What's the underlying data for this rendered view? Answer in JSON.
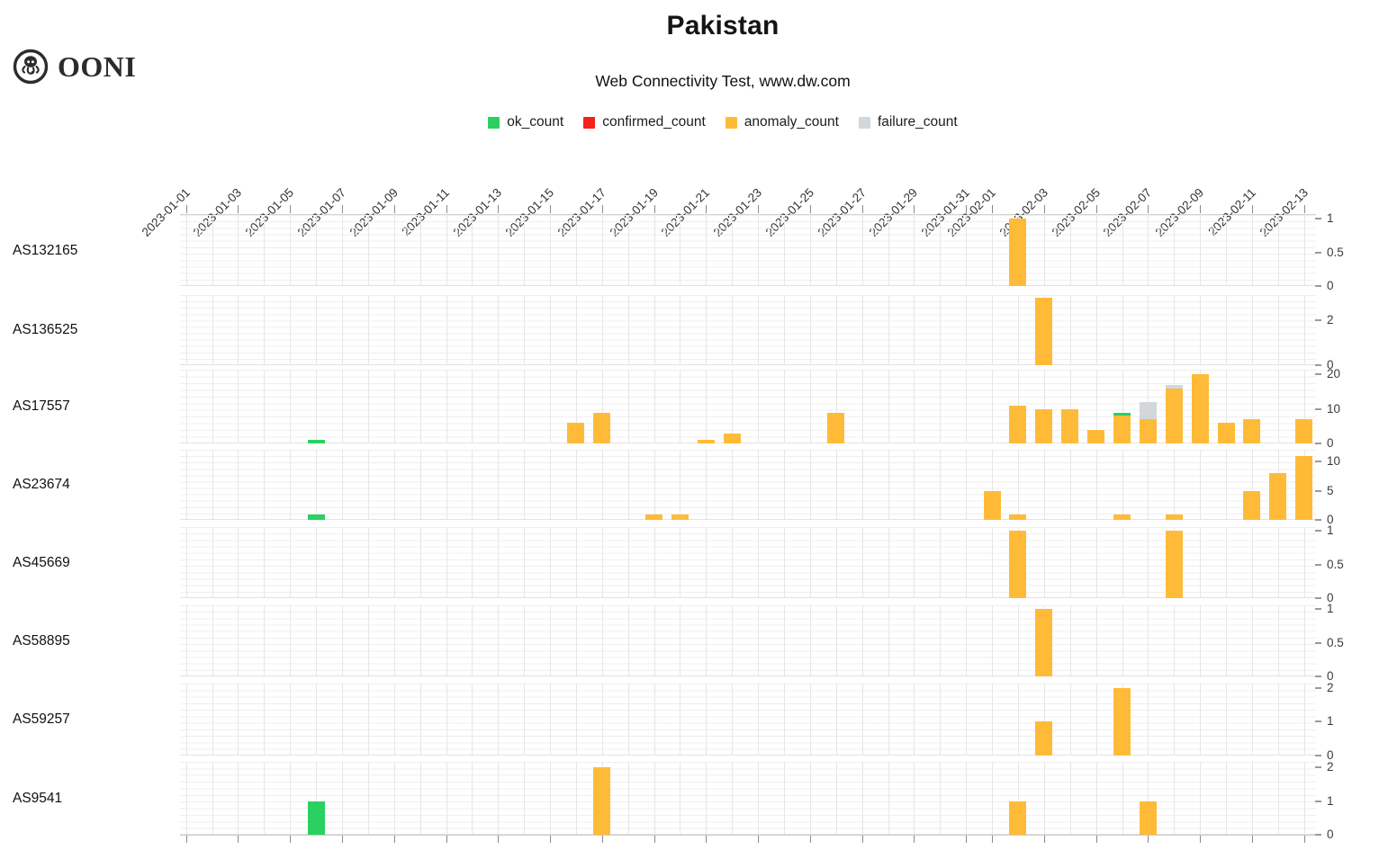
{
  "header": {
    "brand": "OONI",
    "title": "Pakistan",
    "subtitle": "Web Connectivity Test, www.dw.com"
  },
  "legend": [
    {
      "label": "ok_count",
      "color": "#2bd062"
    },
    {
      "label": "confirmed_count",
      "color": "#f8201a"
    },
    {
      "label": "anomaly_count",
      "color": "#ffbb38"
    },
    {
      "label": "failure_count",
      "color": "#d2d7dc"
    }
  ],
  "chart_data": {
    "type": "bar",
    "stacked": true,
    "grid": true,
    "legend_position": "top",
    "title": "Pakistan",
    "subtitle": "Web Connectivity Test, www.dw.com",
    "x_range": [
      "2023-01-01",
      "2023-02-13"
    ],
    "x_tick_labels": [
      "2023-01-01",
      "2023-01-03",
      "2023-01-05",
      "2023-01-07",
      "2023-01-09",
      "2023-01-11",
      "2023-01-13",
      "2023-01-15",
      "2023-01-17",
      "2023-01-19",
      "2023-01-21",
      "2023-01-23",
      "2023-01-25",
      "2023-01-27",
      "2023-01-29",
      "2023-01-31",
      "2023-02-01",
      "2023-02-03",
      "2023-02-05",
      "2023-02-07",
      "2023-02-09",
      "2023-02-11",
      "2023-02-13"
    ],
    "series_colors": {
      "ok": "#2bd062",
      "confirmed": "#f8201a",
      "anomaly": "#ffbb38",
      "failure": "#d2d7dc"
    },
    "stack_order": [
      "anomaly",
      "confirmed",
      "ok",
      "failure"
    ],
    "panels": [
      {
        "as": "AS132165",
        "ylim": [
          0,
          1.06
        ],
        "yticks": [
          0,
          0.5,
          1
        ],
        "bars": [
          {
            "date": "2023-02-02",
            "anomaly": 1
          }
        ]
      },
      {
        "as": "AS136525",
        "ylim": [
          0,
          3.1
        ],
        "yticks": [
          0,
          2
        ],
        "bars": [
          {
            "date": "2023-02-03",
            "anomaly": 3
          }
        ]
      },
      {
        "as": "AS17557",
        "ylim": [
          0,
          21.4
        ],
        "yticks": [
          0,
          10,
          20
        ],
        "bars": [
          {
            "date": "2023-01-06",
            "ok": 1
          },
          {
            "date": "2023-01-16",
            "anomaly": 6
          },
          {
            "date": "2023-01-17",
            "anomaly": 9
          },
          {
            "date": "2023-01-21",
            "anomaly": 1
          },
          {
            "date": "2023-01-22",
            "anomaly": 3
          },
          {
            "date": "2023-01-26",
            "anomaly": 9
          },
          {
            "date": "2023-02-02",
            "anomaly": 11
          },
          {
            "date": "2023-02-03",
            "anomaly": 10
          },
          {
            "date": "2023-02-04",
            "anomaly": 10
          },
          {
            "date": "2023-02-05",
            "anomaly": 4
          },
          {
            "date": "2023-02-06",
            "anomaly": 8,
            "ok": 1
          },
          {
            "date": "2023-02-07",
            "anomaly": 7,
            "failure": 5
          },
          {
            "date": "2023-02-08",
            "anomaly": 16,
            "failure": 1
          },
          {
            "date": "2023-02-09",
            "anomaly": 20
          },
          {
            "date": "2023-02-10",
            "anomaly": 6
          },
          {
            "date": "2023-02-11",
            "anomaly": 7
          },
          {
            "date": "2023-02-13",
            "anomaly": 7
          }
        ]
      },
      {
        "as": "AS23674",
        "ylim": [
          0,
          12
        ],
        "yticks": [
          0,
          5,
          10
        ],
        "bars": [
          {
            "date": "2023-01-06",
            "ok": 1
          },
          {
            "date": "2023-01-19",
            "anomaly": 1
          },
          {
            "date": "2023-01-20",
            "anomaly": 1
          },
          {
            "date": "2023-02-01",
            "anomaly": 5
          },
          {
            "date": "2023-02-02",
            "anomaly": 1
          },
          {
            "date": "2023-02-06",
            "anomaly": 1
          },
          {
            "date": "2023-02-08",
            "anomaly": 1
          },
          {
            "date": "2023-02-11",
            "anomaly": 5
          },
          {
            "date": "2023-02-12",
            "anomaly": 8
          },
          {
            "date": "2023-02-13",
            "anomaly": 11
          }
        ]
      },
      {
        "as": "AS45669",
        "ylim": [
          0,
          1.06
        ],
        "yticks": [
          0,
          0.5,
          1
        ],
        "bars": [
          {
            "date": "2023-02-02",
            "anomaly": 1
          },
          {
            "date": "2023-02-08",
            "anomaly": 1
          }
        ]
      },
      {
        "as": "AS58895",
        "ylim": [
          0,
          1.06
        ],
        "yticks": [
          0,
          0.5,
          1
        ],
        "bars": [
          {
            "date": "2023-02-03",
            "anomaly": 1
          }
        ]
      },
      {
        "as": "AS59257",
        "ylim": [
          0,
          2.13
        ],
        "yticks": [
          0,
          1,
          2
        ],
        "bars": [
          {
            "date": "2023-02-03",
            "anomaly": 1
          },
          {
            "date": "2023-02-06",
            "anomaly": 2
          }
        ]
      },
      {
        "as": "AS9541",
        "ylim": [
          0,
          2.16
        ],
        "yticks": [
          0,
          1,
          2
        ],
        "bars": [
          {
            "date": "2023-01-06",
            "ok": 1
          },
          {
            "date": "2023-01-17",
            "anomaly": 2
          },
          {
            "date": "2023-02-02",
            "anomaly": 1
          },
          {
            "date": "2023-02-07",
            "anomaly": 1
          }
        ]
      }
    ]
  }
}
